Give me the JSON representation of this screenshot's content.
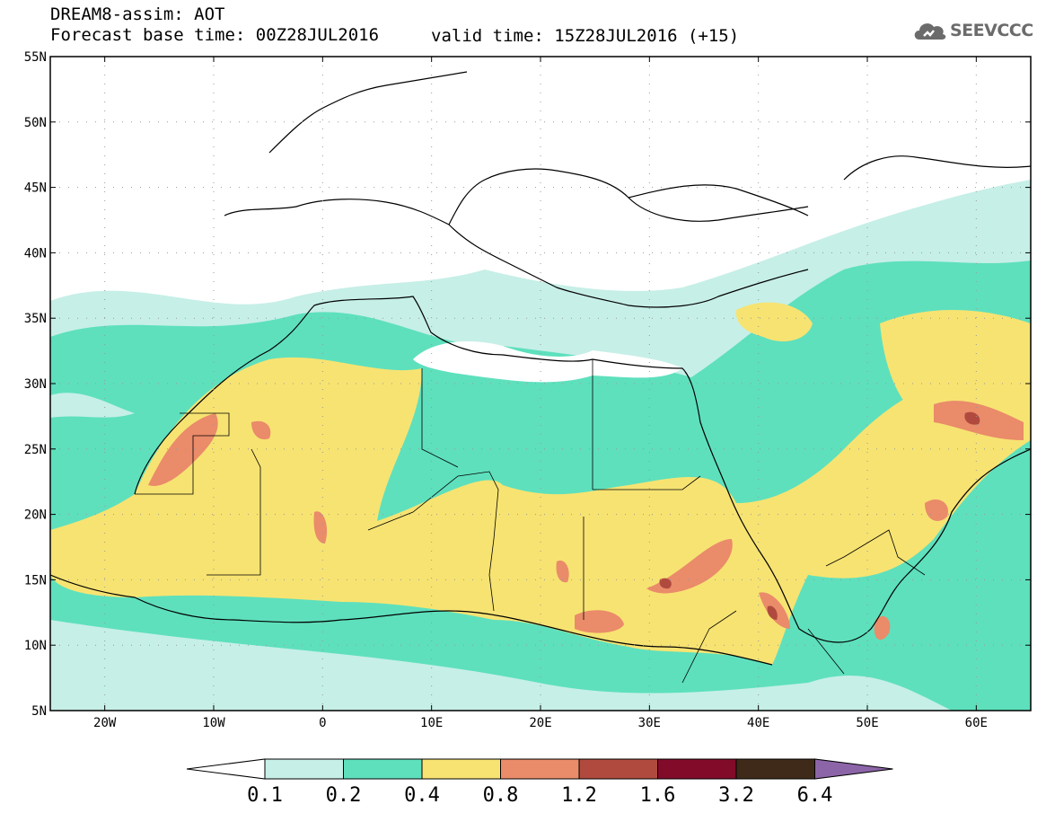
{
  "header": {
    "model_line": "DREAM8-assim: AOT",
    "base_line": "Forecast base time: 00Z28JUL2016",
    "valid_line": "valid time: 15Z28JUL2016 (+15)",
    "logo_text": "SEEVCCC"
  },
  "map": {
    "lat_labels": [
      "55N",
      "50N",
      "45N",
      "40N",
      "35N",
      "30N",
      "25N",
      "20N",
      "15N",
      "10N",
      "5N"
    ],
    "lon_labels": [
      "20W",
      "10W",
      "0",
      "10E",
      "20E",
      "30E",
      "40E",
      "50E",
      "60E"
    ],
    "lon_range": [
      -25,
      65
    ],
    "lat_range": [
      5,
      55
    ]
  },
  "colorbar": {
    "levels": [
      "0.1",
      "0.2",
      "0.4",
      "0.8",
      "1.2",
      "1.6",
      "3.2",
      "6.4"
    ],
    "colors": [
      "#ffffff",
      "#c6efe7",
      "#5ee0bd",
      "#f7e372",
      "#ea8b6a",
      "#b04a3e",
      "#820b2a",
      "#3f2a1a",
      "#8c65a8"
    ]
  },
  "chart_data": {
    "type": "heatmap",
    "title": "DREAM8-assim: AOT",
    "xlabel": "",
    "ylabel": "",
    "x_ticks": [
      "20W",
      "10W",
      "0",
      "10E",
      "20E",
      "30E",
      "40E",
      "50E",
      "60E"
    ],
    "y_ticks": [
      "55N",
      "50N",
      "45N",
      "40N",
      "35N",
      "30N",
      "25N",
      "20N",
      "15N",
      "10N",
      "5N"
    ],
    "xlim": [
      -25,
      65
    ],
    "ylim": [
      5,
      55
    ],
    "levels": [
      0.1,
      0.2,
      0.4,
      0.8,
      1.2,
      1.6,
      3.2,
      6.4
    ],
    "grid": true
  }
}
